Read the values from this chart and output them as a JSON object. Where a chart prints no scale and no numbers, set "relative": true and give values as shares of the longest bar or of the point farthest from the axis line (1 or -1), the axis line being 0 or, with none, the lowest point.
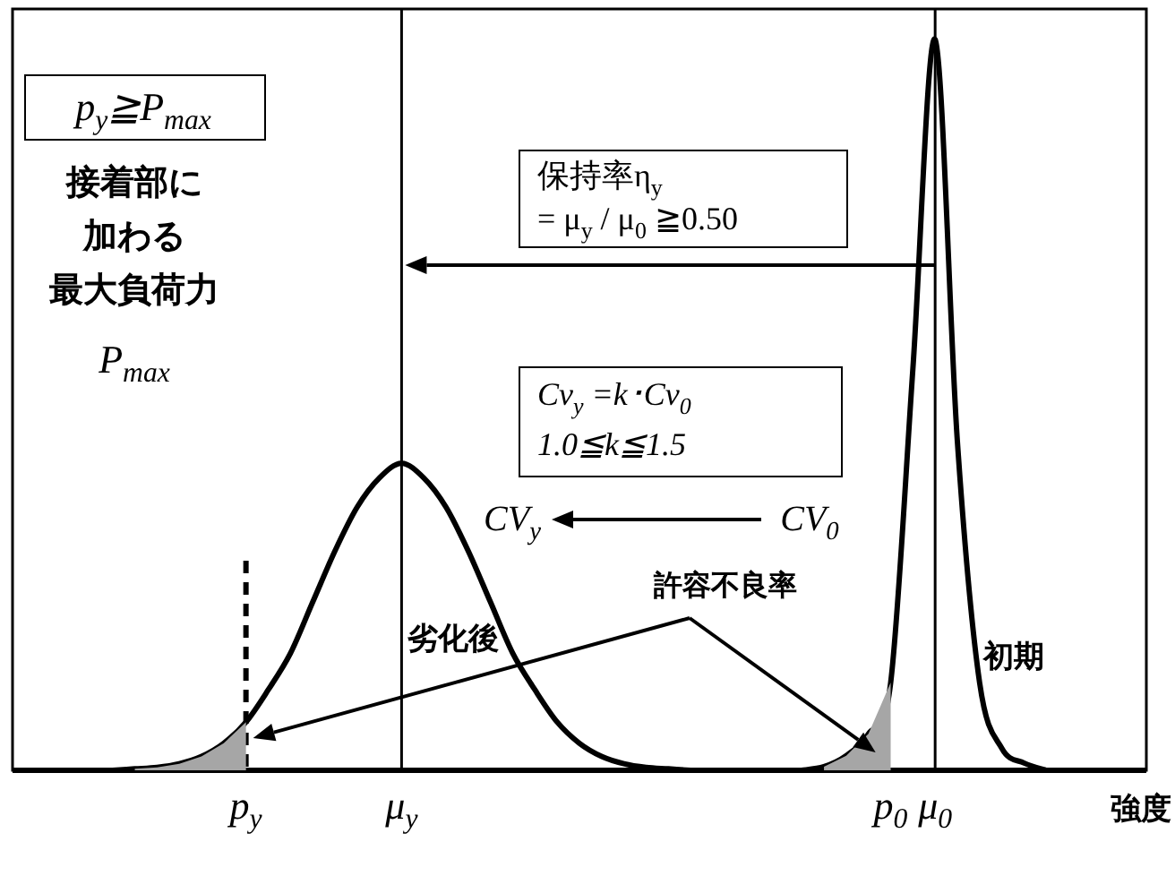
{
  "chart_data": {
    "type": "line",
    "relative": true,
    "categories": [
      null,
      null,
      null,
      null,
      null,
      null,
      null,
      null,
      null,
      null,
      "p$_{y}$",
      null,
      null,
      null,
      null,
      null,
      null,
      "μ$_{y}$",
      null,
      null,
      null,
      null,
      null,
      null,
      null,
      null,
      null,
      null,
      null,
      null,
      null,
      null,
      null,
      null,
      null,
      null,
      null,
      null,
      null,
      "p$_{0}$",
      null,
      "μ$_{0}$",
      null,
      null,
      null,
      null,
      null,
      null,
      null,
      null,
      null
    ],
    "xlabel": "強度",
    "series": [
      {
        "name": "劣化後",
        "color": "#000000",
        "values": [
          null,
          null,
          null,
          null,
          0,
          0.002,
          0.004,
          0.009,
          0.019,
          0.037,
          0.066,
          0.11,
          0.16,
          0.23,
          0.3,
          0.36,
          0.4,
          0.42,
          0.4,
          0.36,
          0.3,
          0.23,
          0.16,
          0.11,
          0.066,
          0.037,
          0.019,
          0.009,
          0.004,
          0.002,
          0,
          null,
          null,
          null,
          null,
          null,
          null,
          null,
          null,
          null,
          null,
          null,
          null,
          null,
          null,
          null,
          null,
          null,
          null,
          null,
          null
        ]
      },
      {
        "name": "初期",
        "color": "#000000",
        "values": [
          null,
          null,
          null,
          null,
          null,
          null,
          null,
          null,
          null,
          null,
          null,
          null,
          null,
          null,
          null,
          null,
          null,
          null,
          null,
          null,
          null,
          null,
          null,
          null,
          null,
          null,
          null,
          null,
          null,
          null,
          null,
          null,
          null,
          null,
          null,
          0,
          0.005,
          0.02,
          0.05,
          0.12,
          0.55,
          1,
          0.45,
          0.12,
          0.03,
          0.01,
          0,
          null,
          null,
          null,
          null
        ]
      },
      {
        "type": "area",
        "color": "#a6a6a6",
        "values": [
          null,
          null,
          null,
          null,
          null,
          0.002,
          0.004,
          0.009,
          0.019,
          0.037,
          0.066,
          null,
          null,
          null,
          null,
          null,
          null,
          null,
          null,
          null,
          null,
          null,
          null,
          null,
          null,
          null,
          null,
          null,
          null,
          null,
          null,
          null,
          null,
          null,
          null,
          null,
          null,
          null,
          null,
          null,
          null,
          null,
          null,
          null,
          null,
          null,
          null,
          null,
          null,
          null,
          null
        ]
      },
      {
        "type": "area",
        "color": "#a6a6a6",
        "values": [
          null,
          null,
          null,
          null,
          null,
          null,
          null,
          null,
          null,
          null,
          null,
          null,
          null,
          null,
          null,
          null,
          null,
          null,
          null,
          null,
          null,
          null,
          null,
          null,
          null,
          null,
          null,
          null,
          null,
          null,
          null,
          null,
          null,
          null,
          null,
          null,
          0.005,
          0.02,
          0.05,
          0.12,
          null,
          null,
          null,
          null,
          null,
          null,
          null,
          null,
          null,
          null,
          null
        ]
      }
    ],
    "ref_lines": [
      {
        "axis": "x",
        "value": "p$_{y}$",
        "line_style": "dashed"
      },
      {
        "axis": "x",
        "value": "μ$_{y}$"
      },
      {
        "axis": "x",
        "value": "μ$_{0}$"
      }
    ],
    "annotations": [
      "p$_{y}$≧P$_{max}$",
      "接着部に",
      "加わる",
      "最大負荷力",
      "P$_{max}$",
      "保持率η$_{y}$\n= μ$_{y}$ / μ$_{0}$ ≧0.50",
      "Cv$_{y}$ =k･Cv$_{0}$\n1.0≦k≦1.5",
      "CV$_{y}$",
      "CV$_{0}$",
      "許容不良率"
    ]
  }
}
